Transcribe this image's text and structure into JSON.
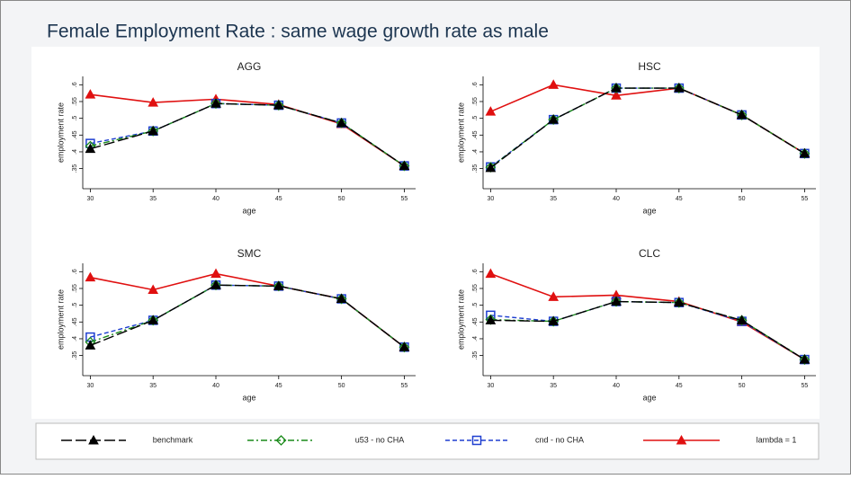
{
  "title": "Female Employment Rate : same wage growth rate as male",
  "legend": [
    {
      "name": "benchmark",
      "color": "#000000"
    },
    {
      "name": "u53 - no CHA",
      "color": "#1a8a1a"
    },
    {
      "name": "cnd - no CHA",
      "color": "#1f3fd0"
    },
    {
      "name": "lambda = 1",
      "color": "#e01010"
    }
  ],
  "chart_data": [
    {
      "type": "line",
      "title": "AGG",
      "xlabel": "age",
      "ylabel": "employment rate",
      "x": [
        30,
        35,
        40,
        45,
        50,
        55
      ],
      "xlim": [
        29.4,
        55.9
      ],
      "xticks": [
        30,
        35,
        40,
        45,
        50,
        55
      ],
      "ylim": [
        0.29,
        0.625
      ],
      "yticks": [
        {
          "value": 0.35,
          "label": ".35"
        },
        {
          "value": 0.4,
          "label": ".4"
        },
        {
          "value": 0.45,
          "label": ".45"
        },
        {
          "value": 0.5,
          "label": ".5"
        },
        {
          "value": 0.55,
          "label": ".55"
        },
        {
          "value": 0.6,
          "label": ".6"
        }
      ],
      "series": [
        {
          "values": [
            0.409,
            0.462,
            0.544,
            0.539,
            0.486,
            0.358
          ]
        },
        {
          "values": [
            0.417,
            0.462,
            0.544,
            0.539,
            0.486,
            0.358
          ]
        },
        {
          "values": [
            0.425,
            0.462,
            0.544,
            0.539,
            0.486,
            0.358
          ]
        },
        {
          "values": [
            0.571,
            0.547,
            0.557,
            0.541,
            0.483,
            0.358
          ]
        }
      ]
    },
    {
      "type": "line",
      "title": "HSC",
      "xlabel": "age",
      "ylabel": "employment rate",
      "x": [
        30,
        35,
        40,
        45,
        50,
        55
      ],
      "xlim": [
        29.4,
        55.9
      ],
      "xticks": [
        30,
        35,
        40,
        45,
        50,
        55
      ],
      "ylim": [
        0.29,
        0.625
      ],
      "yticks": [
        {
          "value": 0.35,
          "label": ".35"
        },
        {
          "value": 0.4,
          "label": ".4"
        },
        {
          "value": 0.45,
          "label": ".45"
        },
        {
          "value": 0.5,
          "label": ".5"
        },
        {
          "value": 0.55,
          "label": ".55"
        },
        {
          "value": 0.6,
          "label": ".6"
        }
      ],
      "series": [
        {
          "values": [
            0.352,
            0.496,
            0.59,
            0.59,
            0.51,
            0.395
          ]
        },
        {
          "values": [
            0.354,
            0.496,
            0.59,
            0.59,
            0.51,
            0.395
          ]
        },
        {
          "values": [
            0.355,
            0.496,
            0.59,
            0.59,
            0.51,
            0.395
          ]
        },
        {
          "values": [
            0.52,
            0.6,
            0.568,
            0.59,
            0.51,
            0.395
          ]
        }
      ]
    },
    {
      "type": "line",
      "title": "SMC",
      "xlabel": "age",
      "ylabel": "employment rate",
      "x": [
        30,
        35,
        40,
        45,
        50,
        55
      ],
      "xlim": [
        29.4,
        55.9
      ],
      "xticks": [
        30,
        35,
        40,
        45,
        50,
        55
      ],
      "ylim": [
        0.29,
        0.625
      ],
      "yticks": [
        {
          "value": 0.35,
          "label": ".35"
        },
        {
          "value": 0.4,
          "label": ".4"
        },
        {
          "value": 0.45,
          "label": ".45"
        },
        {
          "value": 0.5,
          "label": ".5"
        },
        {
          "value": 0.55,
          "label": ".55"
        },
        {
          "value": 0.6,
          "label": ".6"
        }
      ],
      "series": [
        {
          "values": [
            0.38,
            0.455,
            0.56,
            0.557,
            0.519,
            0.375
          ]
        },
        {
          "values": [
            0.39,
            0.455,
            0.56,
            0.557,
            0.519,
            0.375
          ]
        },
        {
          "values": [
            0.405,
            0.455,
            0.56,
            0.557,
            0.519,
            0.375
          ]
        },
        {
          "values": [
            0.583,
            0.546,
            0.594,
            0.557,
            0.519,
            0.375
          ]
        }
      ]
    },
    {
      "type": "line",
      "title": "CLC",
      "xlabel": "age",
      "ylabel": "employment rate",
      "x": [
        30,
        35,
        40,
        45,
        50,
        55
      ],
      "xlim": [
        29.4,
        55.9
      ],
      "xticks": [
        30,
        35,
        40,
        45,
        50,
        55
      ],
      "ylim": [
        0.29,
        0.625
      ],
      "yticks": [
        {
          "value": 0.35,
          "label": ".35"
        },
        {
          "value": 0.4,
          "label": ".4"
        },
        {
          "value": 0.45,
          "label": ".45"
        },
        {
          "value": 0.5,
          "label": ".5"
        },
        {
          "value": 0.55,
          "label": ".55"
        },
        {
          "value": 0.6,
          "label": ".6"
        }
      ],
      "series": [
        {
          "values": [
            0.455,
            0.452,
            0.511,
            0.508,
            0.455,
            0.338
          ]
        },
        {
          "values": [
            0.457,
            0.452,
            0.511,
            0.508,
            0.455,
            0.338
          ]
        },
        {
          "values": [
            0.47,
            0.452,
            0.511,
            0.508,
            0.452,
            0.338
          ]
        },
        {
          "values": [
            0.594,
            0.525,
            0.53,
            0.511,
            0.45,
            0.338
          ]
        }
      ]
    }
  ]
}
